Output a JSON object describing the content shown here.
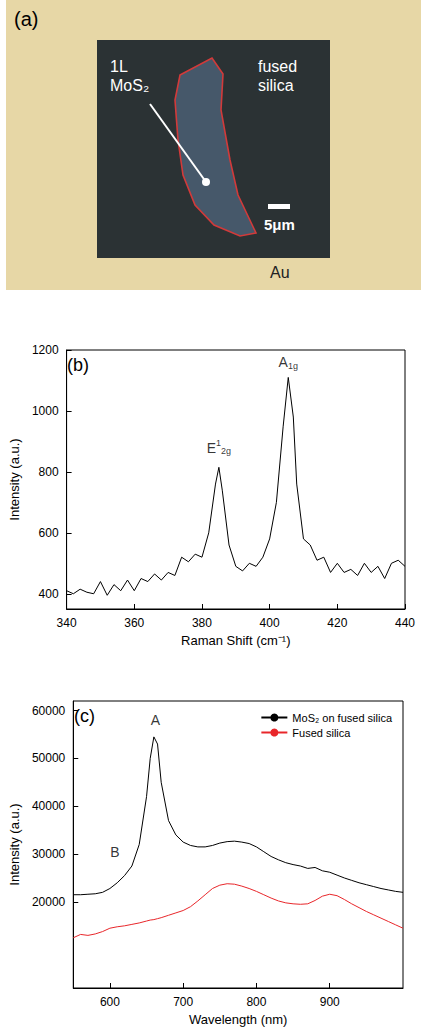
{
  "figure_a": {
    "label": "(a)",
    "texts": {
      "flake": "1L MoS₂",
      "substrate": "fused silica",
      "scale_bar": "5μm",
      "surround": "Au"
    }
  },
  "chart_data": [
    {
      "type": "line",
      "label": "(b)",
      "x_label": "Raman Shift (cm⁻¹)",
      "y_label": "Intensity (a.u.)",
      "x": [
        340,
        342,
        344,
        346,
        348,
        350,
        352,
        354,
        356,
        358,
        360,
        362,
        364,
        366,
        368,
        370,
        372,
        374,
        376,
        378,
        380,
        382,
        384,
        385,
        386,
        388,
        390,
        392,
        394,
        396,
        398,
        400,
        402,
        404,
        405.5,
        407,
        408,
        410,
        412,
        414,
        416,
        418,
        420,
        422,
        424,
        426,
        428,
        430,
        432,
        434,
        436,
        438,
        440
      ],
      "values": [
        410,
        400,
        415,
        405,
        400,
        440,
        395,
        430,
        410,
        445,
        410,
        450,
        440,
        465,
        445,
        470,
        460,
        520,
        505,
        530,
        520,
        600,
        760,
        815,
        740,
        560,
        490,
        475,
        500,
        490,
        520,
        580,
        700,
        950,
        1110,
        980,
        760,
        580,
        560,
        510,
        520,
        470,
        500,
        470,
        480,
        460,
        500,
        470,
        490,
        450,
        500,
        510,
        490
      ],
      "color": "#000000",
      "xlim": [
        340,
        440
      ],
      "xticks": [
        340,
        360,
        380,
        400,
        420,
        440
      ],
      "ylim": [
        350,
        1200
      ],
      "yticks": [
        400,
        600,
        800,
        1000,
        1200
      ],
      "grid": false,
      "annotations": [
        {
          "text": "E",
          "sup": "1",
          "sub": "2g",
          "x": 385,
          "y": 880
        },
        {
          "text": "A",
          "sub": "1g",
          "x": 405.5,
          "y": 1160
        }
      ]
    },
    {
      "type": "line",
      "label": "(c)",
      "x_label": "Wavelength (nm)",
      "y_label": "Intensity (a.u.)",
      "x": [
        550,
        560,
        570,
        580,
        590,
        600,
        610,
        620,
        630,
        640,
        650,
        655,
        660,
        665,
        670,
        680,
        690,
        700,
        710,
        720,
        730,
        740,
        750,
        760,
        770,
        780,
        790,
        800,
        810,
        820,
        830,
        840,
        850,
        860,
        870,
        880,
        890,
        900,
        910,
        920,
        930,
        940,
        950,
        960,
        970,
        980,
        990,
        1000
      ],
      "series": [
        {
          "name": "MoS₂ on fused silica",
          "color": "#000000",
          "values": [
            21500,
            21500,
            21600,
            21700,
            22000,
            22800,
            24000,
            25500,
            27500,
            32000,
            42000,
            50000,
            54500,
            53000,
            45000,
            37000,
            34000,
            32500,
            31800,
            31500,
            31500,
            31800,
            32300,
            32600,
            32700,
            32500,
            32200,
            31500,
            30500,
            29500,
            28800,
            28200,
            27800,
            27500,
            27000,
            27200,
            26500,
            26200,
            25600,
            25000,
            24500,
            24000,
            23600,
            23200,
            22800,
            22500,
            22200,
            22000
          ]
        },
        {
          "name": "Fused silica",
          "color": "#e8262a",
          "values": [
            12500,
            13200,
            13000,
            13300,
            13800,
            14500,
            14800,
            15000,
            15300,
            15600,
            16000,
            16200,
            16300,
            16500,
            16700,
            17200,
            17700,
            18200,
            19000,
            20200,
            21500,
            22800,
            23500,
            23800,
            23700,
            23300,
            22800,
            22200,
            21500,
            20800,
            20200,
            19800,
            19600,
            19500,
            19600,
            20300,
            21200,
            21600,
            21300,
            20500,
            19600,
            18800,
            18000,
            17300,
            16600,
            15900,
            15200,
            14500
          ]
        }
      ],
      "xlim": [
        550,
        1000
      ],
      "xticks": [
        600,
        700,
        800,
        900
      ],
      "ylim": [
        2000,
        62000
      ],
      "yticks": [
        20000,
        30000,
        40000,
        50000,
        60000
      ],
      "grid": false,
      "legend": "upper right",
      "annotations": [
        {
          "text": "A",
          "x": 662,
          "y": 58000
        },
        {
          "text": "B",
          "x": 607,
          "y": 30500
        }
      ]
    }
  ]
}
